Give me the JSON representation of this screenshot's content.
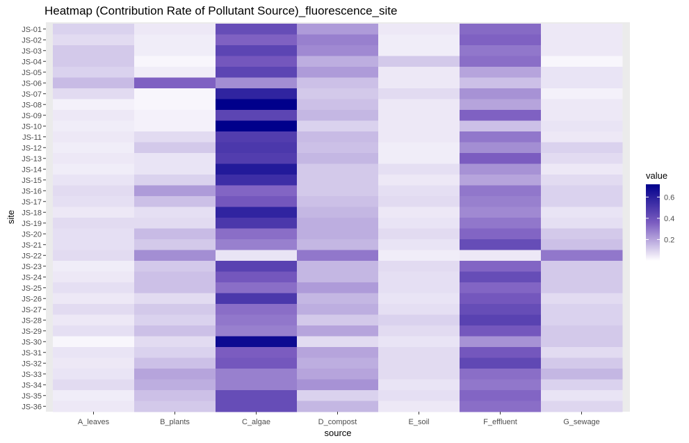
{
  "chart_data": {
    "type": "heatmap",
    "title": "Heatmap (Contribution Rate of Pollutant Source)_fluorescence_site",
    "xlabel": "source",
    "ylabel": "site",
    "x": [
      "A_leaves",
      "B_plants",
      "C_algae",
      "D_compost",
      "E_soil",
      "F_effluent",
      "G_sewage"
    ],
    "y": [
      "JS-01",
      "JS-02",
      "JS-03",
      "JS-04",
      "JS-05",
      "JS-06",
      "JS-07",
      "JS-08",
      "JS-09",
      "JS-10",
      "JS-11",
      "JS-12",
      "JS-13",
      "JS-14",
      "JS-15",
      "JS-16",
      "JS-17",
      "JS-18",
      "JS-19",
      "JS-20",
      "JS-21",
      "JS-22",
      "JS-23",
      "JS-24",
      "JS-25",
      "JS-26",
      "JS-27",
      "JS-28",
      "JS-29",
      "JS-30",
      "JS-31",
      "JS-32",
      "JS-33",
      "JS-34",
      "JS-35",
      "JS-36"
    ],
    "values": [
      [
        0.1,
        0.05,
        0.42,
        0.22,
        0.05,
        0.33,
        0.05
      ],
      [
        0.08,
        0.04,
        0.35,
        0.28,
        0.04,
        0.35,
        0.05
      ],
      [
        0.12,
        0.04,
        0.45,
        0.26,
        0.04,
        0.3,
        0.05
      ],
      [
        0.12,
        0.02,
        0.38,
        0.18,
        0.12,
        0.32,
        0.02
      ],
      [
        0.1,
        0.04,
        0.45,
        0.22,
        0.05,
        0.2,
        0.06
      ],
      [
        0.15,
        0.35,
        0.25,
        0.14,
        0.05,
        0.14,
        0.06
      ],
      [
        0.08,
        0.02,
        0.58,
        0.12,
        0.08,
        0.24,
        0.03
      ],
      [
        0.03,
        0.02,
        0.72,
        0.14,
        0.05,
        0.2,
        0.05
      ],
      [
        0.05,
        0.03,
        0.45,
        0.16,
        0.05,
        0.35,
        0.05
      ],
      [
        0.04,
        0.03,
        0.72,
        0.1,
        0.05,
        0.14,
        0.06
      ],
      [
        0.05,
        0.08,
        0.48,
        0.15,
        0.05,
        0.3,
        0.05
      ],
      [
        0.04,
        0.12,
        0.5,
        0.14,
        0.04,
        0.25,
        0.1
      ],
      [
        0.05,
        0.06,
        0.48,
        0.16,
        0.04,
        0.36,
        0.08
      ],
      [
        0.04,
        0.06,
        0.62,
        0.12,
        0.07,
        0.24,
        0.05
      ],
      [
        0.06,
        0.1,
        0.54,
        0.12,
        0.05,
        0.2,
        0.08
      ],
      [
        0.08,
        0.22,
        0.34,
        0.12,
        0.07,
        0.3,
        0.1
      ],
      [
        0.07,
        0.14,
        0.38,
        0.14,
        0.08,
        0.28,
        0.1
      ],
      [
        0.05,
        0.07,
        0.58,
        0.16,
        0.05,
        0.26,
        0.06
      ],
      [
        0.08,
        0.08,
        0.5,
        0.18,
        0.06,
        0.3,
        0.07
      ],
      [
        0.07,
        0.15,
        0.32,
        0.18,
        0.08,
        0.34,
        0.12
      ],
      [
        0.07,
        0.12,
        0.28,
        0.16,
        0.06,
        0.42,
        0.14
      ],
      [
        0.08,
        0.25,
        0.06,
        0.3,
        0.04,
        0.05,
        0.3
      ],
      [
        0.04,
        0.12,
        0.46,
        0.16,
        0.08,
        0.34,
        0.12
      ],
      [
        0.05,
        0.14,
        0.38,
        0.16,
        0.07,
        0.42,
        0.12
      ],
      [
        0.07,
        0.14,
        0.32,
        0.22,
        0.07,
        0.34,
        0.12
      ],
      [
        0.05,
        0.08,
        0.5,
        0.16,
        0.06,
        0.38,
        0.08
      ],
      [
        0.08,
        0.12,
        0.32,
        0.18,
        0.07,
        0.42,
        0.1
      ],
      [
        0.05,
        0.1,
        0.3,
        0.12,
        0.1,
        0.46,
        0.1
      ],
      [
        0.07,
        0.14,
        0.28,
        0.2,
        0.08,
        0.38,
        0.12
      ],
      [
        0.02,
        0.08,
        0.68,
        0.08,
        0.06,
        0.24,
        0.12
      ],
      [
        0.06,
        0.1,
        0.36,
        0.2,
        0.08,
        0.38,
        0.08
      ],
      [
        0.05,
        0.14,
        0.38,
        0.18,
        0.08,
        0.44,
        0.12
      ],
      [
        0.06,
        0.2,
        0.28,
        0.2,
        0.08,
        0.32,
        0.16
      ],
      [
        0.08,
        0.18,
        0.28,
        0.24,
        0.06,
        0.3,
        0.1
      ],
      [
        0.04,
        0.14,
        0.42,
        0.1,
        0.07,
        0.34,
        0.06
      ],
      [
        0.05,
        0.12,
        0.42,
        0.16,
        0.05,
        0.32,
        0.09
      ]
    ],
    "value_range": [
      0,
      0.72
    ],
    "colors": {
      "low": "#ffffff",
      "high": "#00008b",
      "mid": "#7b5cc0",
      "panel": "#ebebeb"
    },
    "legend": {
      "title": "value",
      "ticks": [
        0.2,
        0.4,
        0.6
      ],
      "placement": "right"
    },
    "grid": true
  }
}
